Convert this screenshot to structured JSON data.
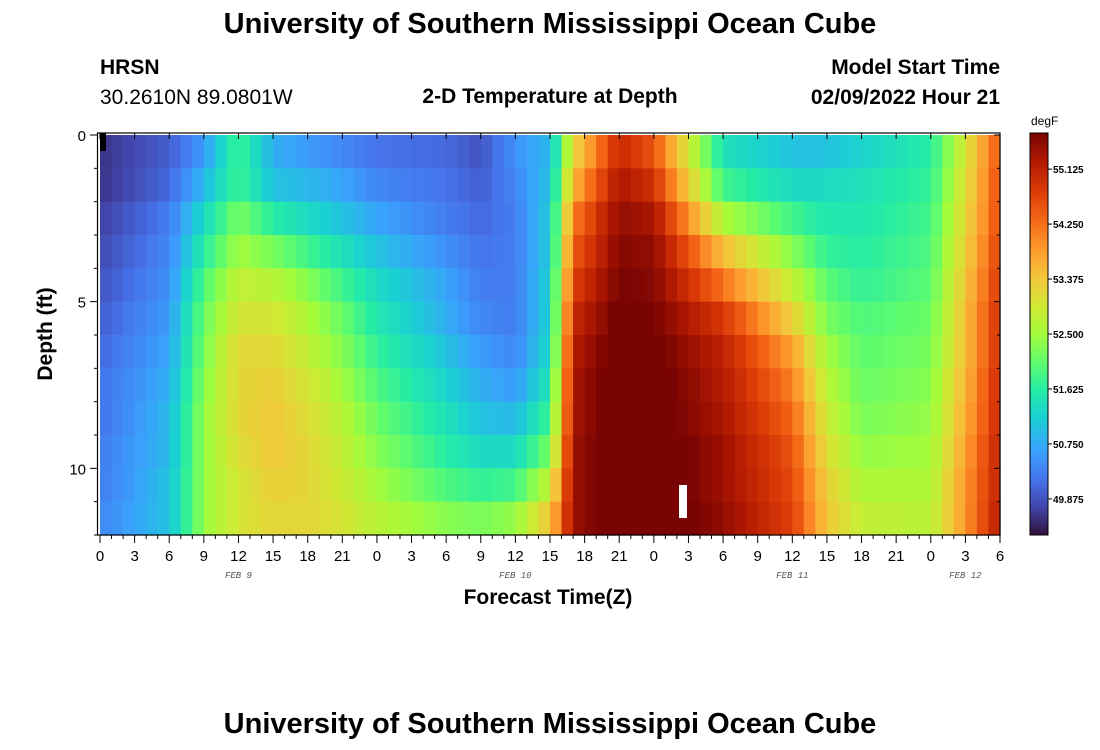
{
  "header": {
    "title": "University of Southern Mississippi Ocean Cube",
    "station": "HRSN",
    "coords": "30.2610N  89.0801W",
    "plot_title": "2-D Temperature at Depth",
    "start_label": "Model Start Time",
    "start_value": "02/09/2022 Hour 21"
  },
  "footer": {
    "title": "University of Southern Mississippi Ocean Cube"
  },
  "chart_data": {
    "type": "heatmap",
    "title": "2-D Temperature at Depth",
    "xlabel": "Forecast Time(Z)",
    "ylabel": "Depth (ft)",
    "colorbar_unit": "degF",
    "x_start_hour": 0,
    "x_end_hour": 78,
    "x_tick_labels": [
      "0",
      "3",
      "6",
      "9",
      "12",
      "15",
      "18",
      "21",
      "0",
      "3",
      "6",
      "9",
      "12",
      "15",
      "18",
      "21",
      "0",
      "3",
      "6",
      "9",
      "12",
      "15",
      "18",
      "21",
      "0",
      "3",
      "6"
    ],
    "date_labels": [
      {
        "text": "FEB 9",
        "hour": 12
      },
      {
        "text": "FEB 10",
        "hour": 36
      },
      {
        "text": "FEB 11",
        "hour": 60
      },
      {
        "text": "FEB 12",
        "hour": 75
      }
    ],
    "y_ticks": [
      0,
      5,
      10
    ],
    "ylim": [
      0,
      12
    ],
    "colorbar_ticks": [
      55.125,
      54.25,
      53.375,
      52.5,
      51.625,
      50.75,
      49.875
    ],
    "colorbar_range": [
      49.3,
      55.7
    ],
    "depth_levels": [
      0.5,
      1.5,
      2.5,
      3.5,
      4.5,
      5.5,
      6.5,
      7.5,
      8.5,
      9.5,
      10.5,
      11.5
    ],
    "time_keyframes_hours": [
      0,
      6,
      9,
      12,
      15,
      18,
      21,
      24,
      30,
      33,
      36,
      39,
      41,
      45,
      48,
      54,
      60,
      63,
      66,
      72,
      75,
      78
    ],
    "temperature_profiles_degF": [
      [
        49.6,
        50.0,
        50.6,
        51.8,
        50.8,
        50.6,
        50.4,
        50.2,
        50.1,
        49.9,
        50.5,
        50.9,
        53.2,
        55.0,
        54.5,
        51.4,
        51.0,
        51.0,
        51.2,
        51.6,
        53.0,
        54.5
      ],
      [
        49.6,
        50.1,
        50.9,
        51.8,
        51.0,
        50.9,
        50.7,
        50.4,
        50.2,
        50.0,
        50.4,
        51.0,
        53.6,
        55.3,
        54.9,
        51.8,
        51.3,
        51.3,
        51.4,
        51.7,
        53.1,
        54.6
      ],
      [
        49.7,
        50.3,
        51.3,
        52.2,
        51.6,
        51.3,
        51.0,
        50.7,
        50.3,
        50.1,
        50.3,
        51.1,
        54.1,
        55.5,
        55.3,
        52.6,
        51.8,
        51.5,
        51.5,
        51.8,
        53.2,
        54.6
      ],
      [
        49.8,
        50.4,
        51.6,
        52.5,
        52.2,
        51.8,
        51.4,
        51.0,
        50.5,
        50.2,
        50.3,
        51.1,
        54.4,
        55.6,
        55.5,
        53.5,
        52.3,
        51.7,
        51.6,
        51.9,
        53.3,
        54.7
      ],
      [
        49.9,
        50.5,
        51.9,
        52.8,
        52.7,
        52.3,
        51.8,
        51.3,
        50.7,
        50.3,
        50.3,
        51.2,
        54.7,
        55.7,
        55.6,
        54.2,
        52.8,
        52.0,
        51.7,
        52.0,
        53.4,
        54.8
      ],
      [
        50.0,
        50.6,
        52.1,
        53.0,
        53.0,
        52.6,
        52.1,
        51.5,
        50.8,
        50.4,
        50.3,
        51.2,
        55.0,
        55.8,
        55.7,
        54.8,
        53.3,
        52.2,
        51.9,
        52.1,
        53.5,
        54.9
      ],
      [
        50.1,
        50.7,
        52.2,
        53.2,
        53.2,
        52.8,
        52.3,
        51.7,
        51.0,
        50.6,
        50.4,
        51.3,
        55.2,
        55.9,
        55.8,
        55.1,
        53.8,
        52.5,
        52.0,
        52.2,
        53.5,
        54.9
      ],
      [
        50.2,
        50.8,
        52.3,
        53.2,
        53.3,
        53.0,
        52.5,
        51.9,
        51.2,
        50.8,
        50.6,
        51.5,
        55.3,
        56.0,
        55.9,
        55.2,
        54.1,
        52.7,
        52.1,
        52.3,
        53.6,
        55.0
      ],
      [
        50.2,
        50.9,
        52.4,
        53.2,
        53.4,
        53.1,
        52.7,
        52.1,
        51.4,
        51.0,
        50.9,
        51.8,
        55.3,
        56.0,
        55.9,
        55.3,
        54.3,
        52.9,
        52.2,
        52.4,
        53.7,
        55.0
      ],
      [
        50.3,
        50.9,
        52.4,
        53.1,
        53.4,
        53.2,
        52.8,
        52.3,
        51.6,
        51.3,
        51.3,
        52.2,
        55.4,
        56.0,
        56.0,
        55.4,
        54.5,
        53.1,
        52.4,
        52.5,
        53.8,
        55.1
      ],
      [
        50.3,
        51.0,
        52.4,
        53.0,
        53.3,
        53.2,
        52.9,
        52.5,
        51.9,
        51.7,
        51.8,
        52.8,
        55.4,
        56.0,
        56.0,
        55.4,
        54.6,
        53.3,
        52.6,
        52.6,
        53.9,
        55.1
      ],
      [
        50.4,
        51.0,
        52.4,
        53.0,
        53.2,
        53.2,
        53.0,
        52.7,
        52.3,
        52.2,
        52.4,
        53.4,
        55.4,
        56.0,
        56.0,
        55.5,
        54.7,
        53.4,
        52.8,
        52.7,
        53.9,
        55.2
      ]
    ]
  }
}
